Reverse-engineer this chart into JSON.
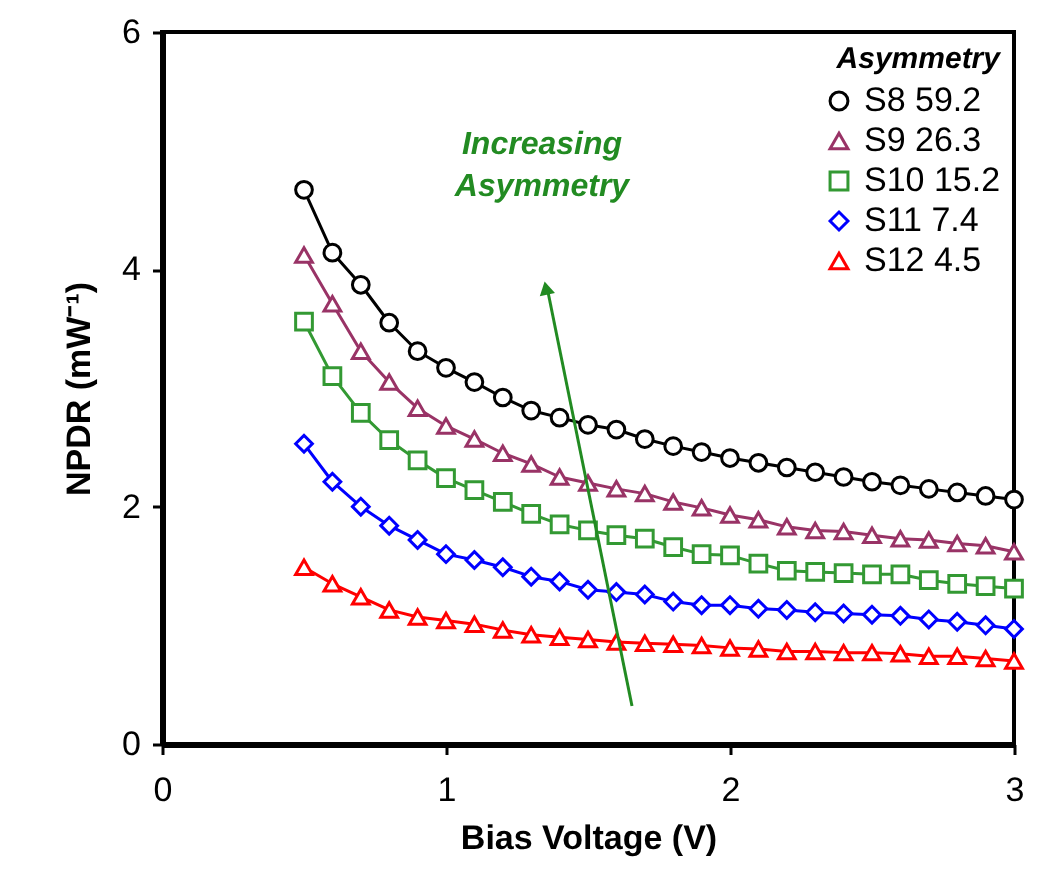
{
  "chart_data": {
    "type": "line",
    "xlabel": "Bias Voltage (V)",
    "ylabel": "NPDR (mW⁻¹)",
    "legend_title": "Asymmetry",
    "x": [
      0.5,
      0.6,
      0.7,
      0.8,
      0.9,
      1.0,
      1.1,
      1.2,
      1.3,
      1.4,
      1.5,
      1.6,
      1.7,
      1.8,
      1.9,
      2.0,
      2.1,
      2.2,
      2.3,
      2.4,
      2.5,
      2.6,
      2.7,
      2.8,
      2.9,
      3.0
    ],
    "series": [
      {
        "name": "S8 59.2",
        "color": "#000000",
        "marker": "circle",
        "values": [
          4.67,
          4.14,
          3.87,
          3.55,
          3.31,
          3.17,
          3.05,
          2.92,
          2.81,
          2.75,
          2.69,
          2.65,
          2.57,
          2.51,
          2.46,
          2.41,
          2.37,
          2.33,
          2.29,
          2.25,
          2.21,
          2.18,
          2.15,
          2.12,
          2.09,
          2.06
        ]
      },
      {
        "name": "S9 26.3",
        "color": "#993366",
        "marker": "triangle",
        "values": [
          4.12,
          3.71,
          3.31,
          3.05,
          2.83,
          2.68,
          2.57,
          2.45,
          2.36,
          2.25,
          2.2,
          2.15,
          2.11,
          2.04,
          1.99,
          1.93,
          1.89,
          1.83,
          1.8,
          1.79,
          1.76,
          1.73,
          1.72,
          1.69,
          1.67,
          1.62
        ]
      },
      {
        "name": "S10 15.2",
        "color": "#339933",
        "marker": "square",
        "values": [
          3.56,
          3.1,
          2.79,
          2.56,
          2.39,
          2.24,
          2.14,
          2.04,
          1.94,
          1.85,
          1.8,
          1.76,
          1.73,
          1.66,
          1.6,
          1.59,
          1.52,
          1.46,
          1.45,
          1.44,
          1.43,
          1.43,
          1.38,
          1.35,
          1.33,
          1.31
        ]
      },
      {
        "name": "S11 7.4",
        "color": "#0000ff",
        "marker": "diamond",
        "values": [
          2.53,
          2.21,
          2.0,
          1.84,
          1.72,
          1.6,
          1.55,
          1.49,
          1.41,
          1.37,
          1.3,
          1.28,
          1.26,
          1.2,
          1.17,
          1.17,
          1.14,
          1.13,
          1.11,
          1.1,
          1.09,
          1.08,
          1.05,
          1.03,
          1.0,
          0.97
        ]
      },
      {
        "name": "S12 4.5",
        "color": "#ff0000",
        "marker": "triangle",
        "values": [
          1.49,
          1.35,
          1.24,
          1.13,
          1.07,
          1.04,
          1.01,
          0.96,
          0.92,
          0.9,
          0.88,
          0.86,
          0.85,
          0.84,
          0.83,
          0.81,
          0.8,
          0.78,
          0.78,
          0.77,
          0.77,
          0.76,
          0.74,
          0.74,
          0.72,
          0.7
        ]
      }
    ],
    "xlim": [
      0,
      3
    ],
    "ylim": [
      0,
      6
    ],
    "xticks": [
      0,
      1,
      2,
      3
    ],
    "yticks": [
      0,
      2,
      4,
      6
    ],
    "legend": "top right",
    "line_style": "solid",
    "annotations": [
      "Increasing Asymmetry"
    ]
  }
}
